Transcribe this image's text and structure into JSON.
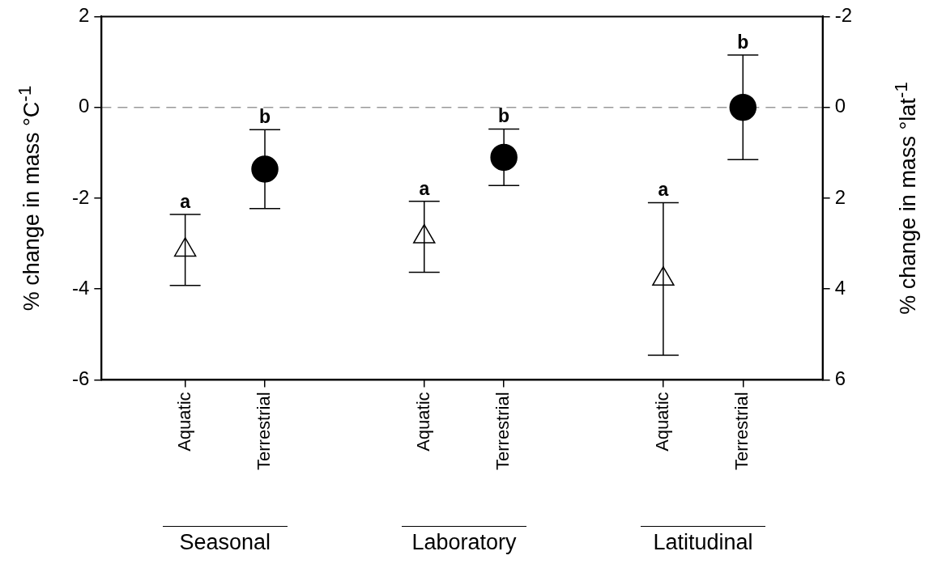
{
  "chart_data": {
    "type": "scatter",
    "categories": [
      "Aquatic",
      "Terrestrial",
      null,
      "Aquatic",
      "Terrestrial",
      null,
      "Aquatic",
      "Terrestrial"
    ],
    "ylabel": "% change in mass °C$^{-1}$",
    "y2label": "% change in mass °lat$^{-1}$",
    "ylim": [
      -6,
      2
    ],
    "yticks": [
      2,
      0,
      -2,
      -4,
      -6
    ],
    "y2lim": [
      6,
      -2
    ],
    "y2ticks": [
      -2,
      0,
      2,
      4,
      6
    ],
    "series": [
      {
        "marker": "triangle",
        "color": "#ffffff",
        "values": [
          -3.14,
          null,
          null,
          -2.85,
          null,
          null,
          null,
          null
        ],
        "errors": [
          0.78,
          null,
          null,
          0.78,
          null,
          null,
          null,
          null
        ]
      },
      {
        "marker": "circle",
        "color": "#000000",
        "values": [
          null,
          -1.36,
          null,
          null,
          -1.1,
          null,
          null,
          null
        ],
        "errors": [
          null,
          0.87,
          null,
          null,
          0.62,
          null,
          null,
          null
        ]
      },
      {
        "marker": "triangle",
        "color": "#ffffff",
        "axis": "y2",
        "values": [
          null,
          null,
          null,
          null,
          null,
          null,
          3.78,
          null
        ],
        "errors": [
          null,
          null,
          null,
          null,
          null,
          null,
          1.68,
          null
        ]
      },
      {
        "marker": "circle",
        "color": "#000000",
        "axis": "y2",
        "values": [
          null,
          null,
          null,
          null,
          null,
          null,
          null,
          0
        ],
        "errors": [
          null,
          null,
          null,
          null,
          null,
          null,
          null,
          1.15
        ]
      }
    ],
    "ref_lines": [
      {
        "axis": "y",
        "value": 0,
        "color": "#999999",
        "line_style": "dashed"
      }
    ],
    "annotations": [
      "a",
      "b",
      "a",
      "b",
      "a",
      "b",
      "Seasonal",
      "Laboratory",
      "Latitudinal"
    ],
    "grid": false,
    "legend": false
  }
}
